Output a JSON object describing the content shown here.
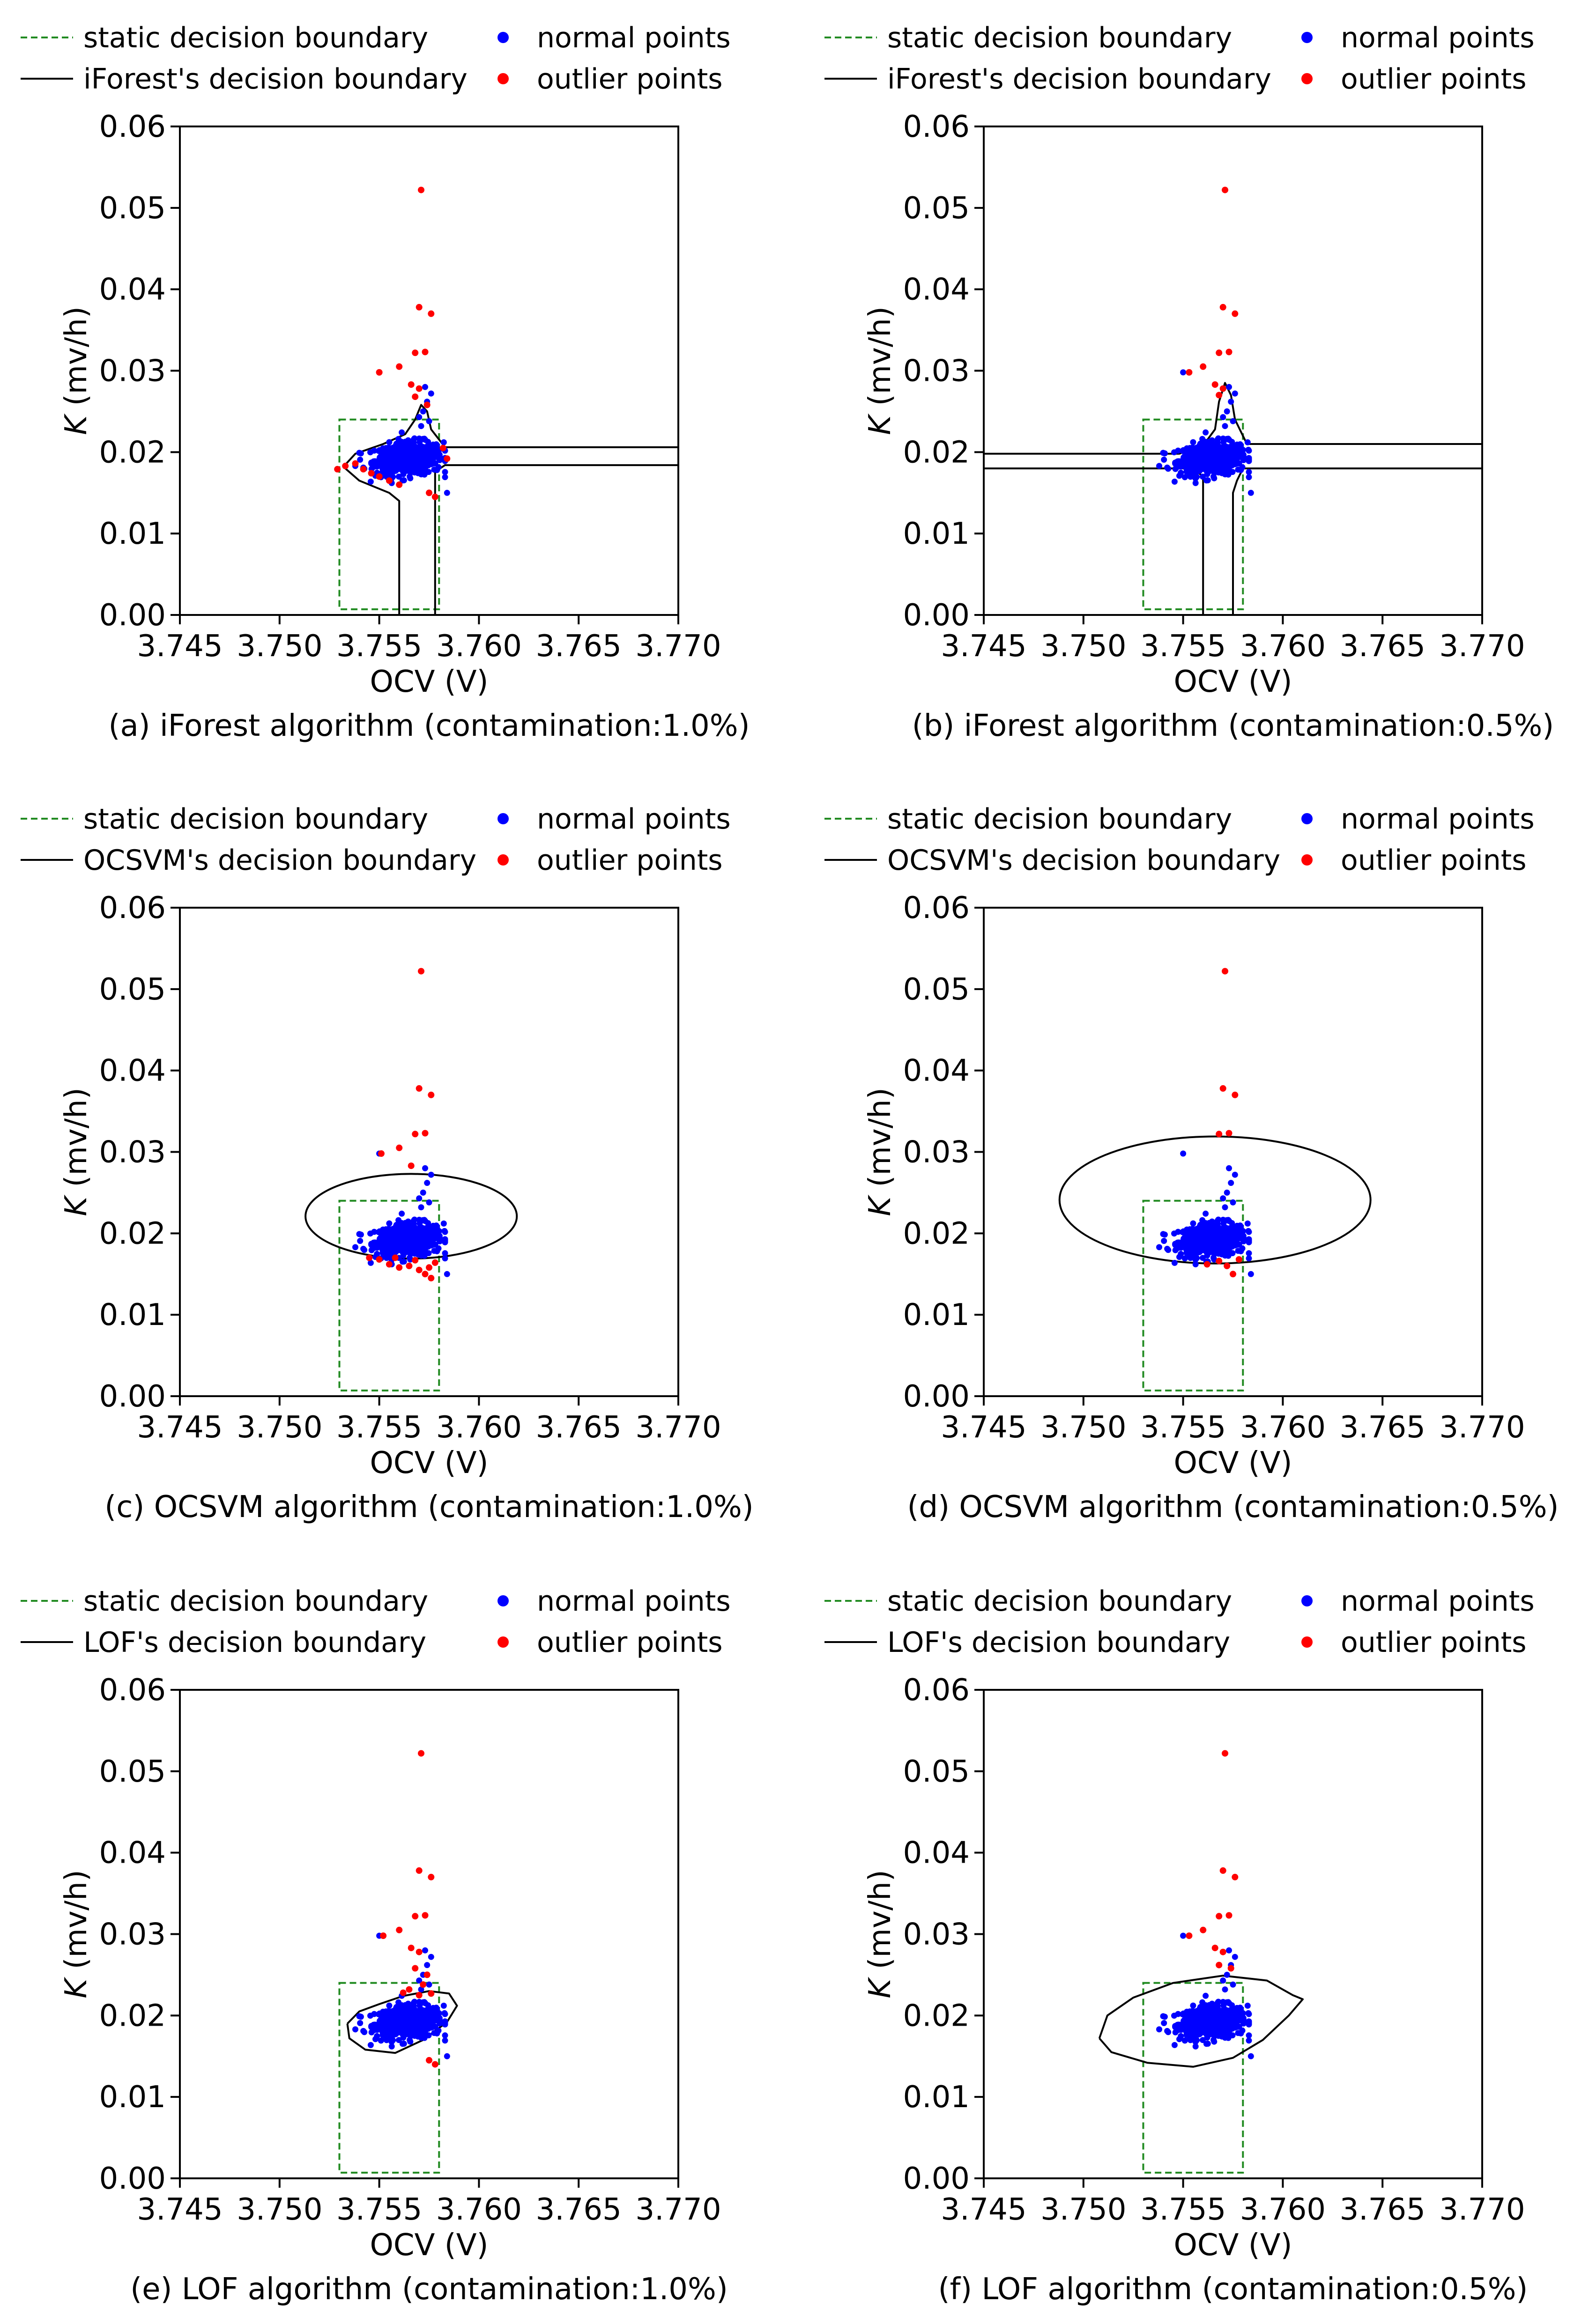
{
  "figure": {
    "colors": {
      "static_boundary": "#228b22",
      "model_boundary": "#000000",
      "normal": "#0000ff",
      "outlier": "#ff0000"
    },
    "legend_labels": {
      "static": "static decision boundary",
      "normal": "normal points",
      "outlier": "outlier points"
    }
  },
  "chart_data": [
    {
      "type": "scatter",
      "panel": "a",
      "title": "(a) iForest algorithm (contamination:1.0%)",
      "xlabel": "OCV (V)",
      "ylabel": "K (mv/h)",
      "xlim": [
        3.745,
        3.77
      ],
      "ylim": [
        0,
        0.06
      ],
      "xticks": [
        "3.745",
        "3.750",
        "3.755",
        "3.760",
        "3.765",
        "3.770"
      ],
      "yticks": [
        "0.00",
        "0.01",
        "0.02",
        "0.03",
        "0.04",
        "0.05",
        "0.06"
      ],
      "legend": {
        "static": "static decision boundary",
        "model": "iForest's decision boundary",
        "normal": "normal points",
        "outlier": "outlier points"
      },
      "static_boundary": {
        "x": [
          3.753,
          3.758
        ],
        "y": [
          0.0007,
          0.024
        ]
      },
      "model_boundary_type": "contour",
      "model_boundary": [
        [
          [
            3.756,
            0.0
          ],
          [
            3.756,
            0.014
          ],
          [
            3.7555,
            0.015
          ],
          [
            3.754,
            0.0165
          ],
          [
            3.7532,
            0.0182
          ],
          [
            3.7538,
            0.0198
          ],
          [
            3.7552,
            0.021
          ],
          [
            3.7563,
            0.0222
          ],
          [
            3.7568,
            0.024
          ],
          [
            3.7571,
            0.0258
          ],
          [
            3.7574,
            0.025
          ],
          [
            3.7576,
            0.0228
          ],
          [
            3.7583,
            0.0206
          ],
          [
            3.77,
            0.0206
          ]
        ],
        [
          [
            3.77,
            0.0184
          ],
          [
            3.7583,
            0.0184
          ],
          [
            3.7578,
            0.0176
          ],
          [
            3.7578,
            0.0
          ]
        ]
      ],
      "outlier_points": [
        [
          3.7571,
          0.0522
        ],
        [
          3.757,
          0.0378
        ],
        [
          3.7576,
          0.037
        ],
        [
          3.7568,
          0.0322
        ],
        [
          3.7573,
          0.0323
        ],
        [
          3.756,
          0.0305
        ],
        [
          3.755,
          0.0298
        ],
        [
          3.7566,
          0.0283
        ],
        [
          3.757,
          0.0278
        ],
        [
          3.7568,
          0.0268
        ],
        [
          3.7574,
          0.0258
        ],
        [
          3.7533,
          0.0183
        ],
        [
          3.7529,
          0.0179
        ],
        [
          3.7538,
          0.0186
        ],
        [
          3.7542,
          0.0179
        ],
        [
          3.7546,
          0.0174
        ],
        [
          3.755,
          0.017
        ],
        [
          3.7555,
          0.0165
        ],
        [
          3.756,
          0.016
        ],
        [
          3.7575,
          0.015
        ],
        [
          3.7578,
          0.0145
        ],
        [
          3.7582,
          0.0205
        ],
        [
          3.7584,
          0.0192
        ]
      ],
      "normal_center": [
        3.7565,
        0.0192
      ],
      "normal_spread": [
        0.0009,
        0.0012
      ]
    },
    {
      "type": "scatter",
      "panel": "b",
      "title": "(b) iForest algorithm (contamination:0.5%)",
      "xlabel": "OCV (V)",
      "ylabel": "K (mv/h)",
      "xlim": [
        3.745,
        3.77
      ],
      "ylim": [
        0,
        0.06
      ],
      "xticks": [
        "3.745",
        "3.750",
        "3.755",
        "3.760",
        "3.765",
        "3.770"
      ],
      "yticks": [
        "0.00",
        "0.01",
        "0.02",
        "0.03",
        "0.04",
        "0.05",
        "0.06"
      ],
      "legend": {
        "static": "static decision boundary",
        "model": "iForest's decision boundary",
        "normal": "normal points",
        "outlier": "outlier points"
      },
      "static_boundary": {
        "x": [
          3.753,
          3.758
        ],
        "y": [
          0.0007,
          0.024
        ]
      },
      "model_boundary_type": "contour",
      "model_boundary": [
        [
          [
            3.745,
            0.0198
          ],
          [
            3.7548,
            0.0198
          ],
          [
            3.756,
            0.0208
          ],
          [
            3.7566,
            0.0228
          ],
          [
            3.7568,
            0.0262
          ],
          [
            3.7571,
            0.0285
          ],
          [
            3.7574,
            0.027
          ],
          [
            3.7576,
            0.024
          ],
          [
            3.758,
            0.022
          ],
          [
            3.7582,
            0.021
          ],
          [
            3.77,
            0.021
          ]
        ],
        [
          [
            3.745,
            0.018
          ],
          [
            3.7555,
            0.018
          ],
          [
            3.756,
            0.017
          ],
          [
            3.756,
            0.0
          ]
        ],
        [
          [
            3.77,
            0.018
          ],
          [
            3.758,
            0.018
          ],
          [
            3.7577,
            0.0165
          ],
          [
            3.7575,
            0.015
          ],
          [
            3.7575,
            0.0
          ]
        ]
      ],
      "outlier_points": [
        [
          3.7571,
          0.0522
        ],
        [
          3.757,
          0.0378
        ],
        [
          3.7576,
          0.037
        ],
        [
          3.7568,
          0.0322
        ],
        [
          3.7573,
          0.0323
        ],
        [
          3.756,
          0.0305
        ],
        [
          3.7553,
          0.0298
        ],
        [
          3.7566,
          0.0283
        ],
        [
          3.757,
          0.0278
        ],
        [
          3.7568,
          0.027
        ]
      ],
      "normal_center": [
        3.7565,
        0.0192
      ],
      "normal_spread": [
        0.0009,
        0.0012
      ]
    },
    {
      "type": "scatter",
      "panel": "c",
      "title": "(c) OCSVM algorithm (contamination:1.0%)",
      "xlabel": "OCV (V)",
      "ylabel": "K (mv/h)",
      "xlim": [
        3.745,
        3.77
      ],
      "ylim": [
        0,
        0.06
      ],
      "xticks": [
        "3.745",
        "3.750",
        "3.755",
        "3.760",
        "3.765",
        "3.770"
      ],
      "yticks": [
        "0.00",
        "0.01",
        "0.02",
        "0.03",
        "0.04",
        "0.05",
        "0.06"
      ],
      "legend": {
        "static": "static decision boundary",
        "model": "OCSVM's decision boundary",
        "normal": "normal points",
        "outlier": "outlier points"
      },
      "static_boundary": {
        "x": [
          3.753,
          3.758
        ],
        "y": [
          0.0007,
          0.024
        ]
      },
      "model_boundary_type": "ellipse",
      "model_boundary": {
        "cx": 3.7566,
        "cy": 0.0221,
        "rx": 0.0053,
        "ry": 0.0052
      },
      "outlier_points": [
        [
          3.7571,
          0.0522
        ],
        [
          3.757,
          0.0378
        ],
        [
          3.7576,
          0.037
        ],
        [
          3.7568,
          0.0322
        ],
        [
          3.7573,
          0.0323
        ],
        [
          3.756,
          0.0305
        ],
        [
          3.7551,
          0.0298
        ],
        [
          3.7566,
          0.0283
        ],
        [
          3.7573,
          0.015
        ],
        [
          3.7576,
          0.0145
        ],
        [
          3.755,
          0.0168
        ],
        [
          3.7555,
          0.0162
        ],
        [
          3.756,
          0.0158
        ],
        [
          3.7565,
          0.016
        ],
        [
          3.757,
          0.0155
        ],
        [
          3.7578,
          0.0164
        ],
        [
          3.7545,
          0.017
        ],
        [
          3.7558,
          0.017
        ],
        [
          3.7568,
          0.0167
        ],
        [
          3.7575,
          0.0158
        ]
      ],
      "normal_center": [
        3.7565,
        0.0192
      ],
      "normal_spread": [
        0.0009,
        0.0012
      ]
    },
    {
      "type": "scatter",
      "panel": "d",
      "title": "(d) OCSVM algorithm (contamination:0.5%)",
      "xlabel": "OCV (V)",
      "ylabel": "K (mv/h)",
      "xlim": [
        3.745,
        3.77
      ],
      "ylim": [
        0,
        0.06
      ],
      "xticks": [
        "3.745",
        "3.750",
        "3.755",
        "3.760",
        "3.765",
        "3.770"
      ],
      "yticks": [
        "0.00",
        "0.01",
        "0.02",
        "0.03",
        "0.04",
        "0.05",
        "0.06"
      ],
      "legend": {
        "static": "static decision boundary",
        "model": "OCSVM's decision boundary",
        "normal": "normal points",
        "outlier": "outlier points"
      },
      "static_boundary": {
        "x": [
          3.753,
          3.758
        ],
        "y": [
          0.0007,
          0.024
        ]
      },
      "model_boundary_type": "ellipse",
      "model_boundary": {
        "cx": 3.7566,
        "cy": 0.0241,
        "rx": 0.0078,
        "ry": 0.0078
      },
      "outlier_points": [
        [
          3.7571,
          0.0522
        ],
        [
          3.757,
          0.0378
        ],
        [
          3.7576,
          0.037
        ],
        [
          3.7568,
          0.0322
        ],
        [
          3.7573,
          0.0323
        ],
        [
          3.7575,
          0.015
        ],
        [
          3.7572,
          0.016
        ],
        [
          3.7562,
          0.0162
        ],
        [
          3.7578,
          0.0168
        ],
        [
          3.7568,
          0.0166
        ]
      ],
      "normal_center": [
        3.7565,
        0.0192
      ],
      "normal_spread": [
        0.0009,
        0.0012
      ]
    },
    {
      "type": "scatter",
      "panel": "e",
      "title": "(e) LOF algorithm (contamination:1.0%)",
      "xlabel": "OCV (V)",
      "ylabel": "K (mv/h)",
      "xlim": [
        3.745,
        3.77
      ],
      "ylim": [
        0,
        0.06
      ],
      "xticks": [
        "3.745",
        "3.750",
        "3.755",
        "3.760",
        "3.765",
        "3.770"
      ],
      "yticks": [
        "0.00",
        "0.01",
        "0.02",
        "0.03",
        "0.04",
        "0.05",
        "0.06"
      ],
      "legend": {
        "static": "static decision boundary",
        "model": "LOF's decision boundary",
        "normal": "normal points",
        "outlier": "outlier points"
      },
      "static_boundary": {
        "x": [
          3.753,
          3.758
        ],
        "y": [
          0.0007,
          0.024
        ]
      },
      "model_boundary_type": "contour",
      "model_boundary": [
        [
          [
            3.7534,
            0.019
          ],
          [
            3.754,
            0.0205
          ],
          [
            3.755,
            0.0214
          ],
          [
            3.7562,
            0.0224
          ],
          [
            3.7575,
            0.023
          ],
          [
            3.7585,
            0.0227
          ],
          [
            3.7589,
            0.0212
          ],
          [
            3.7584,
            0.0192
          ],
          [
            3.7572,
            0.017
          ],
          [
            3.7558,
            0.0154
          ],
          [
            3.7543,
            0.0158
          ],
          [
            3.7535,
            0.0172
          ],
          [
            3.7534,
            0.019
          ]
        ]
      ],
      "outlier_points": [
        [
          3.7571,
          0.0522
        ],
        [
          3.757,
          0.0378
        ],
        [
          3.7576,
          0.037
        ],
        [
          3.7568,
          0.0322
        ],
        [
          3.7573,
          0.0323
        ],
        [
          3.756,
          0.0305
        ],
        [
          3.7552,
          0.0298
        ],
        [
          3.7566,
          0.0283
        ],
        [
          3.757,
          0.0278
        ],
        [
          3.7568,
          0.0258
        ],
        [
          3.7574,
          0.025
        ],
        [
          3.7572,
          0.0238
        ],
        [
          3.7565,
          0.0232
        ],
        [
          3.757,
          0.0225
        ],
        [
          3.7576,
          0.0227
        ],
        [
          3.7562,
          0.0228
        ],
        [
          3.7575,
          0.0145
        ],
        [
          3.7578,
          0.014
        ]
      ],
      "normal_center": [
        3.7565,
        0.0192
      ],
      "normal_spread": [
        0.0009,
        0.0012
      ]
    },
    {
      "type": "scatter",
      "panel": "f",
      "title": "(f) LOF algorithm (contamination:0.5%)",
      "xlabel": "OCV (V)",
      "ylabel": "K (mv/h)",
      "xlim": [
        3.745,
        3.77
      ],
      "ylim": [
        0,
        0.06
      ],
      "xticks": [
        "3.745",
        "3.750",
        "3.755",
        "3.760",
        "3.765",
        "3.770"
      ],
      "yticks": [
        "0.00",
        "0.01",
        "0.02",
        "0.03",
        "0.04",
        "0.05",
        "0.06"
      ],
      "legend": {
        "static": "static decision boundary",
        "model": "LOF's decision boundary",
        "normal": "normal points",
        "outlier": "outlier points"
      },
      "static_boundary": {
        "x": [
          3.753,
          3.758
        ],
        "y": [
          0.0007,
          0.024
        ]
      },
      "model_boundary_type": "contour",
      "model_boundary": [
        [
          [
            3.7508,
            0.0172
          ],
          [
            3.7512,
            0.02
          ],
          [
            3.7525,
            0.0222
          ],
          [
            3.7545,
            0.024
          ],
          [
            3.757,
            0.0249
          ],
          [
            3.7592,
            0.0243
          ],
          [
            3.7605,
            0.0225
          ],
          [
            3.761,
            0.022
          ],
          [
            3.7603,
            0.02
          ],
          [
            3.759,
            0.017
          ],
          [
            3.7575,
            0.0148
          ],
          [
            3.7555,
            0.0137
          ],
          [
            3.7532,
            0.0142
          ],
          [
            3.7514,
            0.0155
          ],
          [
            3.7508,
            0.0172
          ]
        ]
      ],
      "outlier_points": [
        [
          3.7571,
          0.0522
        ],
        [
          3.757,
          0.0378
        ],
        [
          3.7576,
          0.037
        ],
        [
          3.7568,
          0.0322
        ],
        [
          3.7573,
          0.0323
        ],
        [
          3.756,
          0.0305
        ],
        [
          3.7553,
          0.0298
        ],
        [
          3.7566,
          0.0283
        ],
        [
          3.757,
          0.0278
        ],
        [
          3.7568,
          0.0262
        ],
        [
          3.7574,
          0.0258
        ]
      ],
      "normal_center": [
        3.7565,
        0.0192
      ],
      "normal_spread": [
        0.0009,
        0.0012
      ]
    }
  ]
}
